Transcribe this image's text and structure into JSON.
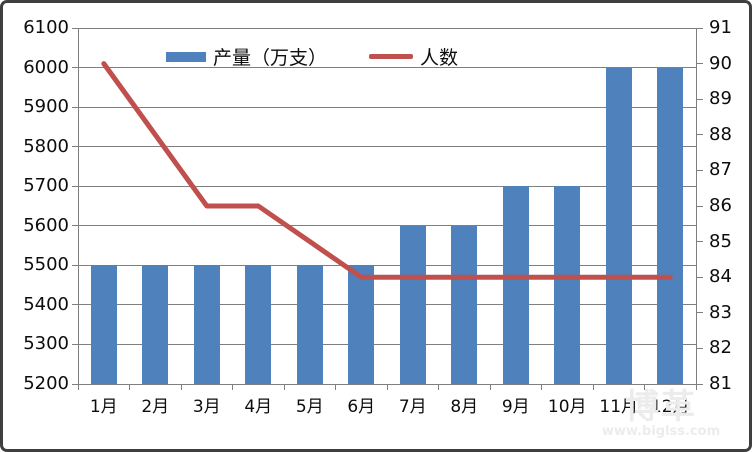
{
  "chart_data": {
    "type": "bar",
    "subtype": "bar-line-combo",
    "title": "",
    "categories": [
      "1月",
      "2月",
      "3月",
      "4月",
      "5月",
      "6月",
      "7月",
      "8月",
      "9月",
      "10月",
      "11月",
      "12月"
    ],
    "series": [
      {
        "name": "产量（万支）",
        "type": "bar",
        "axis": "left",
        "color": "#4f81bd",
        "values": [
          5500,
          5500,
          5500,
          5500,
          5500,
          5500,
          5600,
          5600,
          5700,
          5700,
          6000,
          6000
        ]
      },
      {
        "name": "人数",
        "type": "line",
        "axis": "right",
        "color": "#c0504d",
        "values": [
          90,
          88,
          86,
          86,
          85,
          84,
          84,
          84,
          84,
          84,
          84,
          84
        ]
      }
    ],
    "left_axis": {
      "min": 5200,
      "max": 6100,
      "step": 100,
      "ticks": [
        "5200",
        "5300",
        "5400",
        "5500",
        "5600",
        "5700",
        "5800",
        "5900",
        "6000",
        "6100"
      ]
    },
    "right_axis": {
      "min": 81,
      "max": 91,
      "step": 1,
      "ticks": [
        "81",
        "82",
        "83",
        "84",
        "85",
        "86",
        "87",
        "88",
        "89",
        "90",
        "91"
      ]
    },
    "grid": true,
    "legend_position": "top-center",
    "xlabel": "",
    "ylabel": ""
  },
  "legend": {
    "bar_label": "产量（万支）",
    "line_label": "人数"
  },
  "watermark": {
    "logo_text": "博革",
    "url_text": "www.biglss.com"
  },
  "colors": {
    "bar": "#4f81bd",
    "line": "#c0504d",
    "grid": "#7f7f7f",
    "text": "#0d0d0d",
    "frame_border": "#3f3f3f",
    "background": "#ffffff"
  }
}
